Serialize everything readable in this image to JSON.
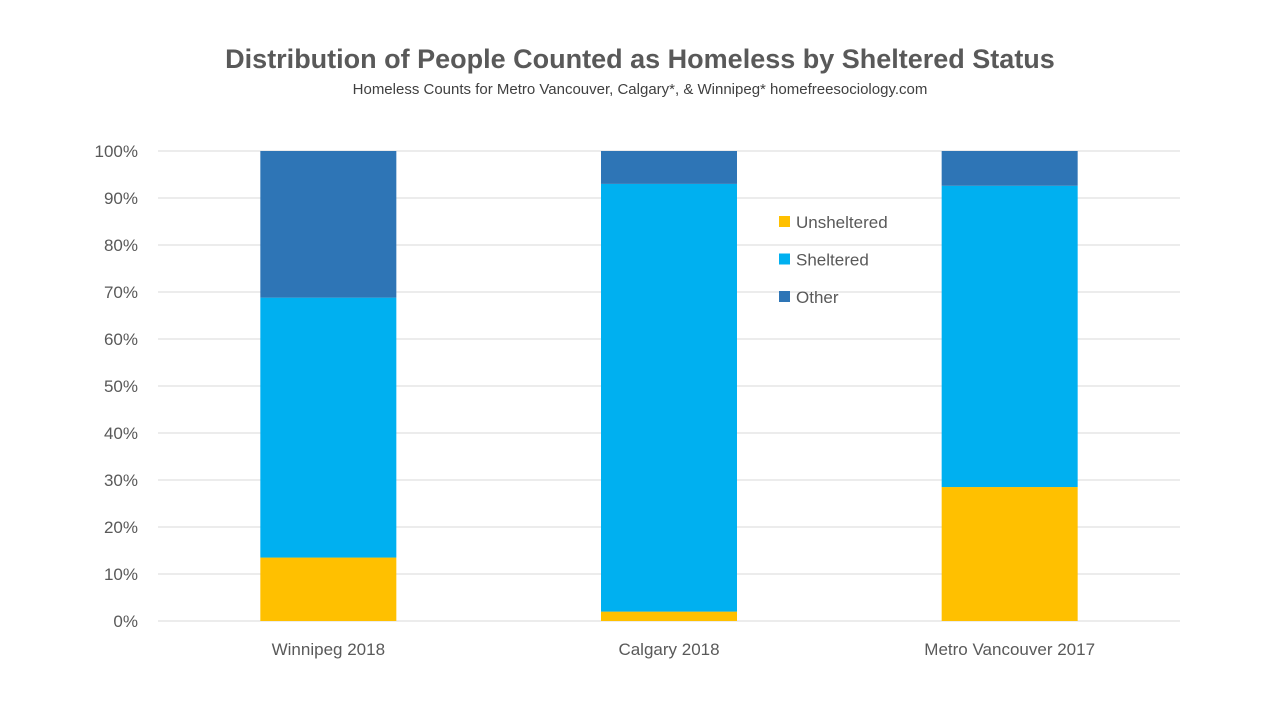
{
  "chart_data": {
    "type": "bar",
    "stacked": true,
    "percent": true,
    "title": "Distribution of People Counted as Homeless by Sheltered Status",
    "subtitle": "Homeless Counts for Metro Vancouver, Calgary*, & Winnipeg*  homefreesociology.com",
    "xlabel": "",
    "ylabel": "",
    "categories": [
      "Winnipeg 2018",
      "Calgary 2018",
      "Metro Vancouver 2017"
    ],
    "series": [
      {
        "name": "Unsheltered",
        "color": "#FFC000",
        "values": [
          13.5,
          2.0,
          28.5
        ]
      },
      {
        "name": "Sheltered",
        "color": "#00B0F0",
        "values": [
          55.3,
          91.0,
          64.1
        ]
      },
      {
        "name": "Other",
        "color": "#2E75B6",
        "values": [
          31.2,
          7.0,
          7.4
        ]
      }
    ],
    "ylim": [
      0,
      100
    ],
    "yticks": [
      "0%",
      "10%",
      "20%",
      "30%",
      "40%",
      "50%",
      "60%",
      "70%",
      "80%",
      "90%",
      "100%"
    ],
    "grid": true,
    "legend_position": "top-right-inside"
  }
}
